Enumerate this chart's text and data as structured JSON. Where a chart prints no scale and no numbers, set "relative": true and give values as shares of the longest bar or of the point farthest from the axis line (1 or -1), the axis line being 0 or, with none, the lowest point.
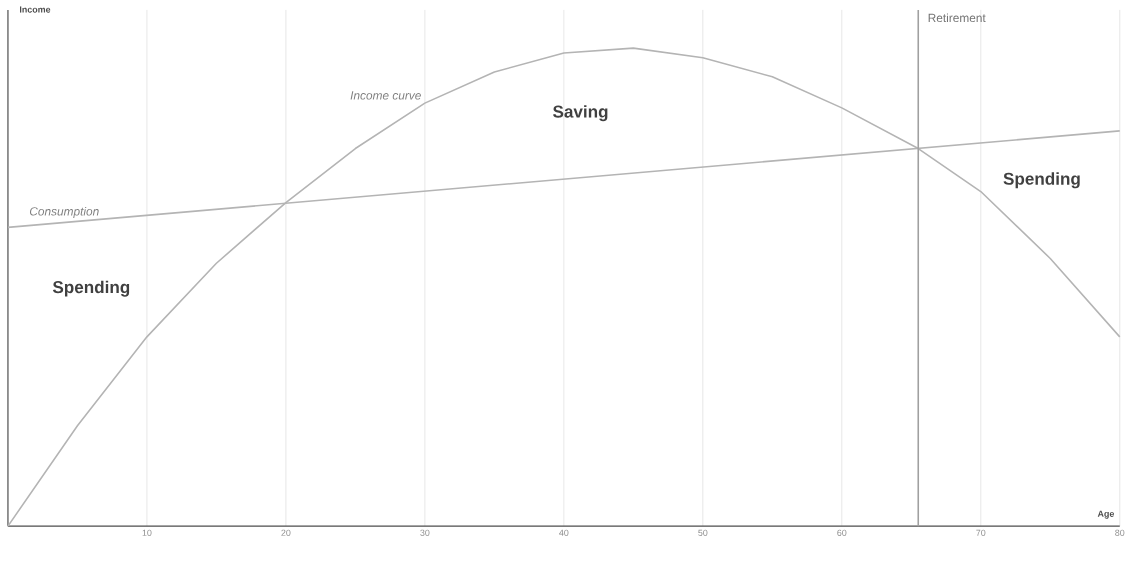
{
  "chart_data": {
    "type": "line",
    "relative": true,
    "xlabel": "Age",
    "ylabel": "Income",
    "xlim": [
      0,
      80
    ],
    "xticks": [
      10,
      20,
      30,
      40,
      50,
      60,
      70,
      80
    ],
    "series": [
      {
        "name": "Income curve",
        "color": "#b4b4b4",
        "x": [
          0,
          5,
          10,
          15,
          20,
          25,
          30,
          35,
          40,
          45,
          50,
          55,
          60,
          65.5,
          70,
          75,
          80
        ],
        "values": [
          0,
          0.21,
          0.396,
          0.55,
          0.677,
          0.79,
          0.885,
          0.95,
          0.99,
          1,
          0.98,
          0.94,
          0.875,
          0.79,
          0.7,
          0.56,
          0.396
        ]
      },
      {
        "name": "Consumption",
        "color": "#b4b4b4",
        "x": [
          0,
          80
        ],
        "values": [
          0.625,
          0.827
        ]
      }
    ],
    "ref_lines": [
      {
        "axis": "x",
        "value": 65.5,
        "label": "Retirement",
        "color": "#a0a0a0"
      }
    ],
    "annotations": [
      "Saving",
      "Spending",
      "Spending"
    ],
    "grid": "x",
    "legend": false,
    "marker": "none",
    "line_style": "solid"
  }
}
